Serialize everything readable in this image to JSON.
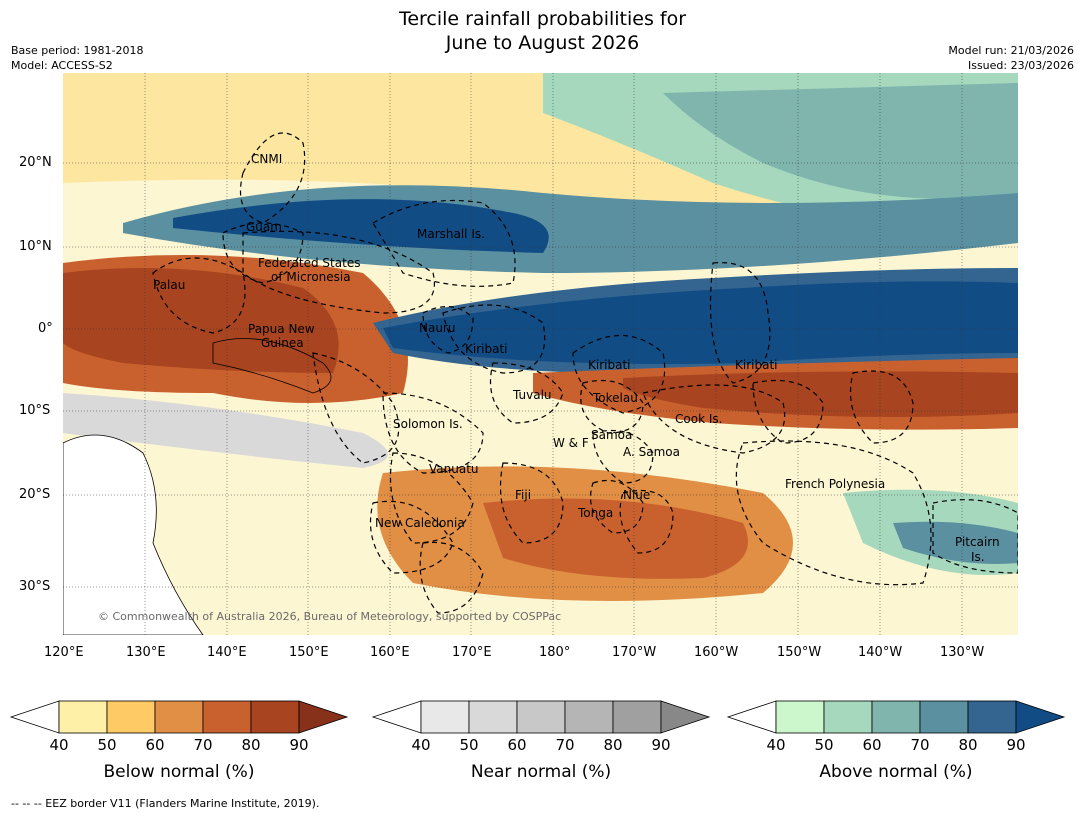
{
  "title": {
    "line1": "Tercile rainfall probabilities for",
    "line2": "June to August 2026"
  },
  "meta": {
    "base_period": "Base period: 1981-2018",
    "model": "Model: ACCESS-S2",
    "model_run": "Model run: 21/03/2026",
    "issued": "Issued: 23/03/2026"
  },
  "axes": {
    "lat_labels": [
      "20°N",
      "10°N",
      "0°",
      "10°S",
      "20°S",
      "30°S"
    ],
    "lon_labels": [
      "120°E",
      "130°E",
      "140°E",
      "150°E",
      "160°E",
      "170°E",
      "180°",
      "170°W",
      "160°W",
      "150°W",
      "140°W",
      "130°W"
    ]
  },
  "regions": [
    "CNMI",
    "Guam",
    "Marshall Is.",
    "Federated States",
    "of Micronesia",
    "Palau",
    "Papua New",
    "Guinea",
    "Nauru",
    "Kiribati",
    "Kiribati",
    "Kiribati",
    "Tuvalu",
    "Tokelau",
    "Solomon Is.",
    "Samoa",
    "W & F",
    "Cook Is.",
    "A. Samoa",
    "Vanuatu",
    "Fiji",
    "Niue",
    "French Polynesia",
    "Tonga",
    "New Caledonia",
    "Pitcairn",
    "Is."
  ],
  "copyright": "© Commonwealth of Australia 2026, Bureau of Meteorology, supported by COSPPac",
  "colorbars": [
    {
      "label": "Below normal (%)",
      "ticks": [
        "40",
        "50",
        "60",
        "70",
        "80",
        "90"
      ],
      "colors": [
        "#fff0a8",
        "#fdca66",
        "#e08f45",
        "#c9612f",
        "#a8441f",
        "#87301a"
      ]
    },
    {
      "label": "Near normal (%)",
      "ticks": [
        "40",
        "50",
        "60",
        "70",
        "80",
        "90"
      ],
      "colors": [
        "#e8e8e8",
        "#d9d9d9",
        "#c8c8c8",
        "#b5b5b5",
        "#a0a0a0",
        "#888888"
      ]
    },
    {
      "label": "Above normal (%)",
      "ticks": [
        "40",
        "50",
        "60",
        "70",
        "80",
        "90"
      ],
      "colors": [
        "#ccf7cc",
        "#a6d8bd",
        "#80b5ae",
        "#5a90a0",
        "#336590",
        "#124c85"
      ]
    }
  ],
  "footnote": "--  --  -- EEZ border V11 (Flanders Marine Institute, 2019)."
}
